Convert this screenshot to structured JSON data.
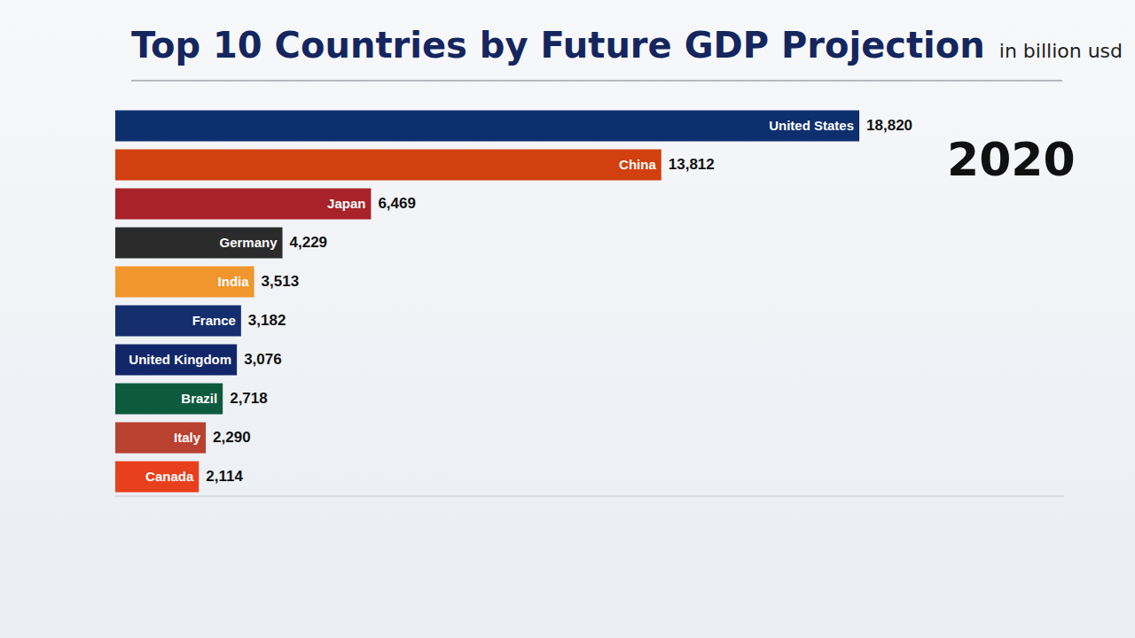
{
  "chart_data": {
    "type": "bar",
    "orientation": "horizontal",
    "title": "Top 10 Countries by Future GDP Projection",
    "subtitle": "in billion usd",
    "annotations": [
      "2020"
    ],
    "categories": [
      "United States",
      "China",
      "Japan",
      "Germany",
      "India",
      "France",
      "United Kingdom",
      "Brazil",
      "Italy",
      "Canada"
    ],
    "values": [
      18820,
      13812,
      6469,
      4229,
      3513,
      3182,
      3076,
      2718,
      2290,
      2114
    ],
    "value_labels": [
      "18,820",
      "13,812",
      "6,469",
      "4,229",
      "3,513",
      "3,182",
      "3,076",
      "2,718",
      "2,290",
      "2,114"
    ],
    "colors": [
      "#0d2f6e",
      "#d1400e",
      "#a8222a",
      "#2b2b2b",
      "#f0962c",
      "#142e6e",
      "#12266a",
      "#0d5a3e",
      "#b8412f",
      "#e8401c"
    ],
    "xlim": [
      0,
      24000
    ],
    "tick_labels": false,
    "data_labels": true,
    "grid": false
  }
}
